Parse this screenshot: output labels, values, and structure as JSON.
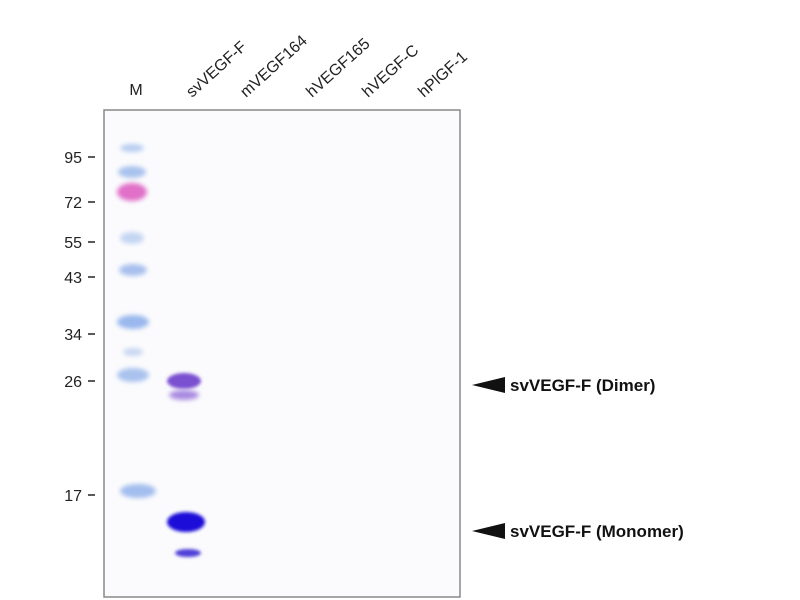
{
  "lanes": [
    "M",
    "svVEGF-F",
    "mVEGF164",
    "hVEGF165",
    "hVEGF-C",
    "hPlGF-1"
  ],
  "markers": [
    "95",
    "72",
    "55",
    "43",
    "34",
    "26",
    "17"
  ],
  "annotations": [
    "svVEGF-F (Dimer)",
    "svVEGF-F (Monomer)"
  ]
}
